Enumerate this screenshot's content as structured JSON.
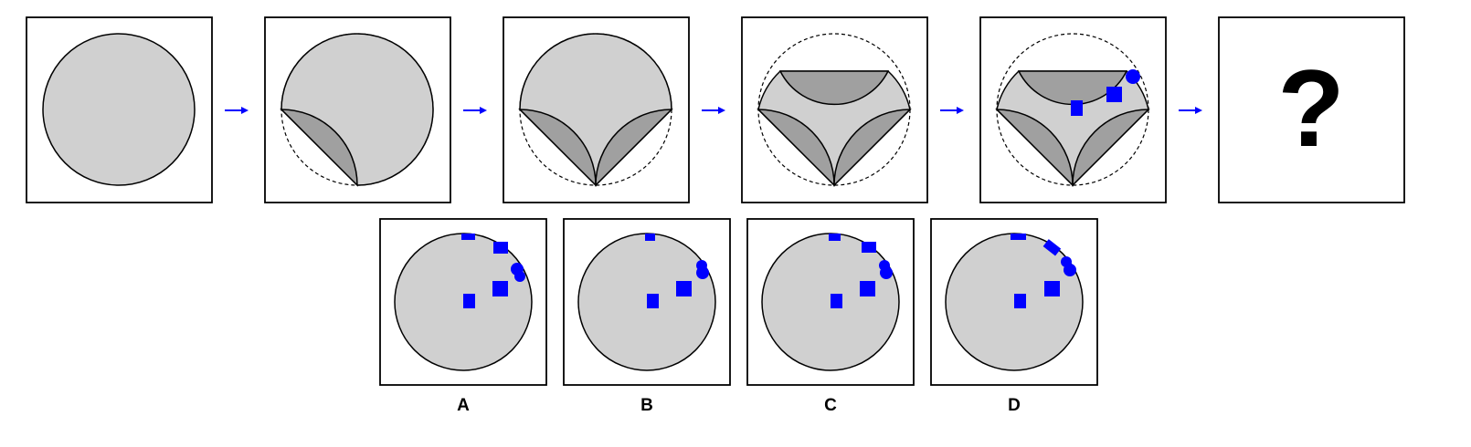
{
  "puzzle": {
    "question_mark": "?",
    "options": [
      {
        "label": "A"
      },
      {
        "label": "B"
      },
      {
        "label": "C"
      },
      {
        "label": "D"
      }
    ]
  },
  "colors": {
    "disk_fill": "#d0d0d0",
    "fold_fill": "#a0a0a0",
    "marker_fill": "#0000ff",
    "arrow": "#0000ff",
    "outline": "#000000"
  },
  "icons": {
    "step_arrow": "right-arrow-icon",
    "marker_square": "square-marker-icon",
    "marker_circle": "circle-marker-icon"
  }
}
